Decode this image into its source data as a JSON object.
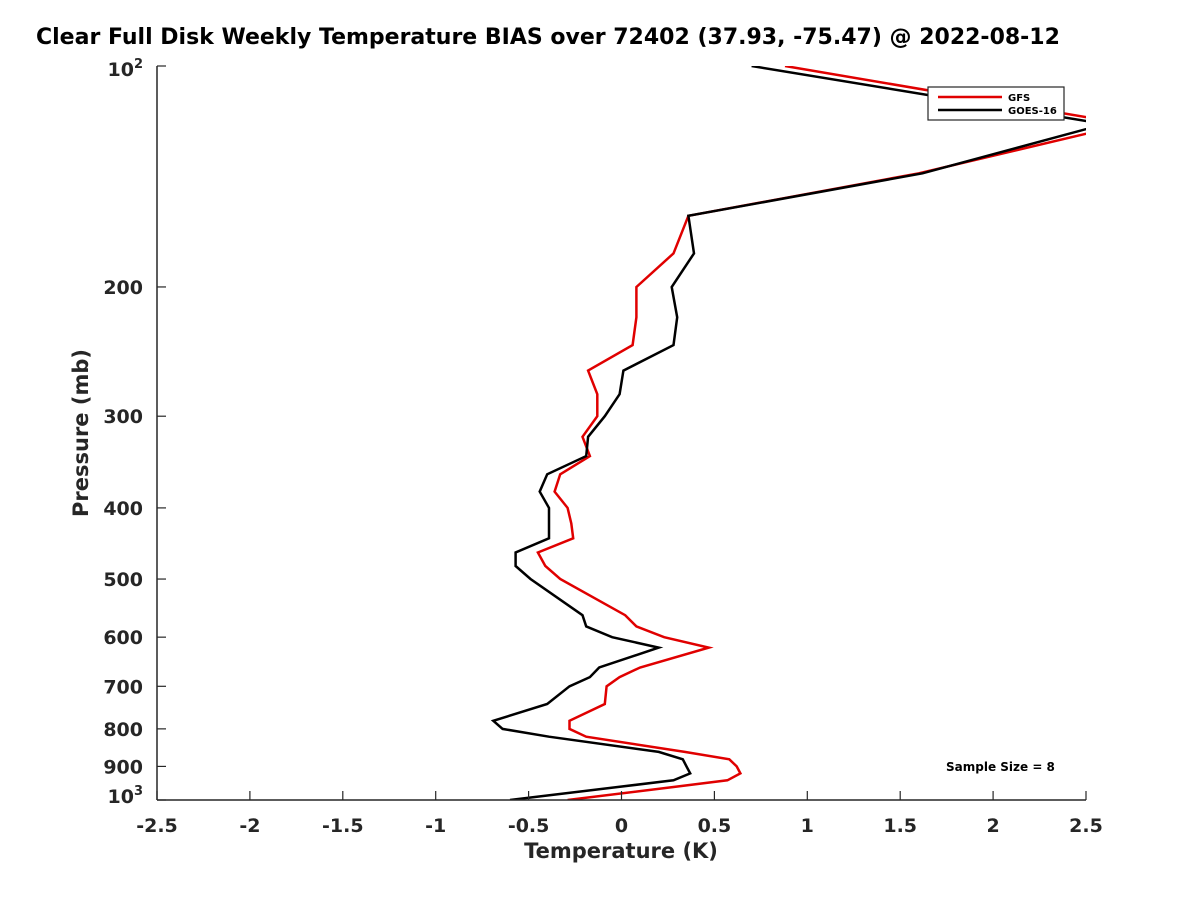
{
  "chart_data": {
    "type": "line",
    "title": "Clear Full Disk Weekly Temperature BIAS over 72402 (37.93, -75.47) @ 2022-08-12",
    "xlabel": "Temperature (K)",
    "ylabel": "Pressure (mb)",
    "xlim": [
      -2.5,
      2.5
    ],
    "ylim": [
      100,
      1000
    ],
    "yscale": "log",
    "y_reversed": true,
    "grid": false,
    "legend_position": "top-right",
    "annotation": "Sample Size = 8",
    "xticks": [
      "-2.5",
      "-2",
      "-1.5",
      "-1",
      "-0.5",
      "0",
      "0.5",
      "1",
      "1.5",
      "2",
      "2.5"
    ],
    "xtick_values": [
      -2.5,
      -2,
      -1.5,
      -1,
      -0.5,
      0,
      0.5,
      1,
      1.5,
      2,
      2.5
    ],
    "yticks": [
      {
        "value": 100,
        "base": "10",
        "exp": "2",
        "label": ""
      },
      {
        "value": 200,
        "label": "200"
      },
      {
        "value": 300,
        "label": "300"
      },
      {
        "value": 400,
        "label": "400"
      },
      {
        "value": 500,
        "label": "500"
      },
      {
        "value": 600,
        "label": "600"
      },
      {
        "value": 700,
        "label": "700"
      },
      {
        "value": 800,
        "label": "800"
      },
      {
        "value": 900,
        "label": "900"
      },
      {
        "value": 1000,
        "base": "10",
        "exp": "3",
        "label": ""
      }
    ],
    "series": [
      {
        "name": "GFS",
        "color": "#e00000",
        "pressure": [
          100,
          120,
          140,
          160,
          180,
          200,
          220,
          240,
          260,
          280,
          300,
          320,
          340,
          360,
          380,
          400,
          420,
          440,
          460,
          480,
          500,
          560,
          580,
          600,
          620,
          660,
          680,
          700,
          740,
          780,
          800,
          820,
          860,
          880,
          900,
          920,
          940,
          960,
          1000
        ],
        "temperature": [
          0.88,
          2.72,
          1.6,
          0.36,
          0.28,
          0.08,
          0.08,
          0.06,
          -0.18,
          -0.13,
          -0.13,
          -0.21,
          -0.17,
          -0.33,
          -0.36,
          -0.29,
          -0.27,
          -0.26,
          -0.45,
          -0.41,
          -0.33,
          0.02,
          0.08,
          0.23,
          0.47,
          0.1,
          -0.01,
          -0.08,
          -0.09,
          -0.28,
          -0.28,
          -0.19,
          0.34,
          0.58,
          0.62,
          0.64,
          0.57,
          0.28,
          -0.29
        ]
      },
      {
        "name": "GOES-16",
        "color": "#000000",
        "pressure": [
          100,
          120,
          140,
          160,
          180,
          200,
          220,
          240,
          260,
          280,
          300,
          320,
          340,
          360,
          380,
          400,
          420,
          440,
          460,
          480,
          500,
          560,
          580,
          600,
          620,
          660,
          680,
          700,
          740,
          780,
          800,
          820,
          860,
          880,
          900,
          920,
          940,
          960,
          1000
        ],
        "temperature": [
          0.7,
          2.6,
          1.62,
          0.36,
          0.39,
          0.27,
          0.3,
          0.28,
          0.01,
          -0.01,
          -0.09,
          -0.18,
          -0.19,
          -0.4,
          -0.44,
          -0.39,
          -0.39,
          -0.39,
          -0.57,
          -0.57,
          -0.49,
          -0.21,
          -0.19,
          -0.05,
          0.2,
          -0.12,
          -0.17,
          -0.28,
          -0.4,
          -0.69,
          -0.64,
          -0.39,
          0.2,
          0.33,
          0.35,
          0.37,
          0.28,
          -0.02,
          -0.6
        ]
      }
    ]
  }
}
